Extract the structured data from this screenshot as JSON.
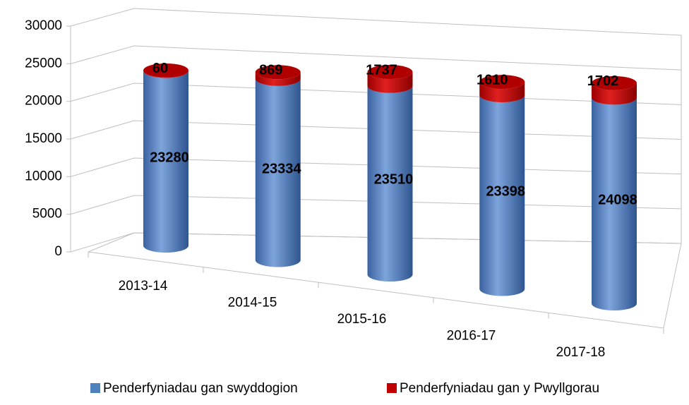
{
  "chart_data": {
    "type": "bar3d-cylinder-stacked",
    "categories": [
      "2013-14",
      "2014-15",
      "2015-16",
      "2016-17",
      "2017-18"
    ],
    "series": [
      {
        "name": "Penderfyniadau gan swyddogion",
        "color": "#4f81bd",
        "values": [
          23280,
          23334,
          23510,
          23398,
          24098
        ]
      },
      {
        "name": "Penderfyniadau gan y Pwyllgorau",
        "color": "#c00000",
        "values": [
          60,
          869,
          1737,
          1610,
          1702
        ]
      }
    ],
    "ylim": [
      0,
      30000
    ],
    "yticks": [
      0,
      5000,
      10000,
      15000,
      20000,
      25000,
      30000
    ],
    "grid": true,
    "legend": "bottom"
  }
}
